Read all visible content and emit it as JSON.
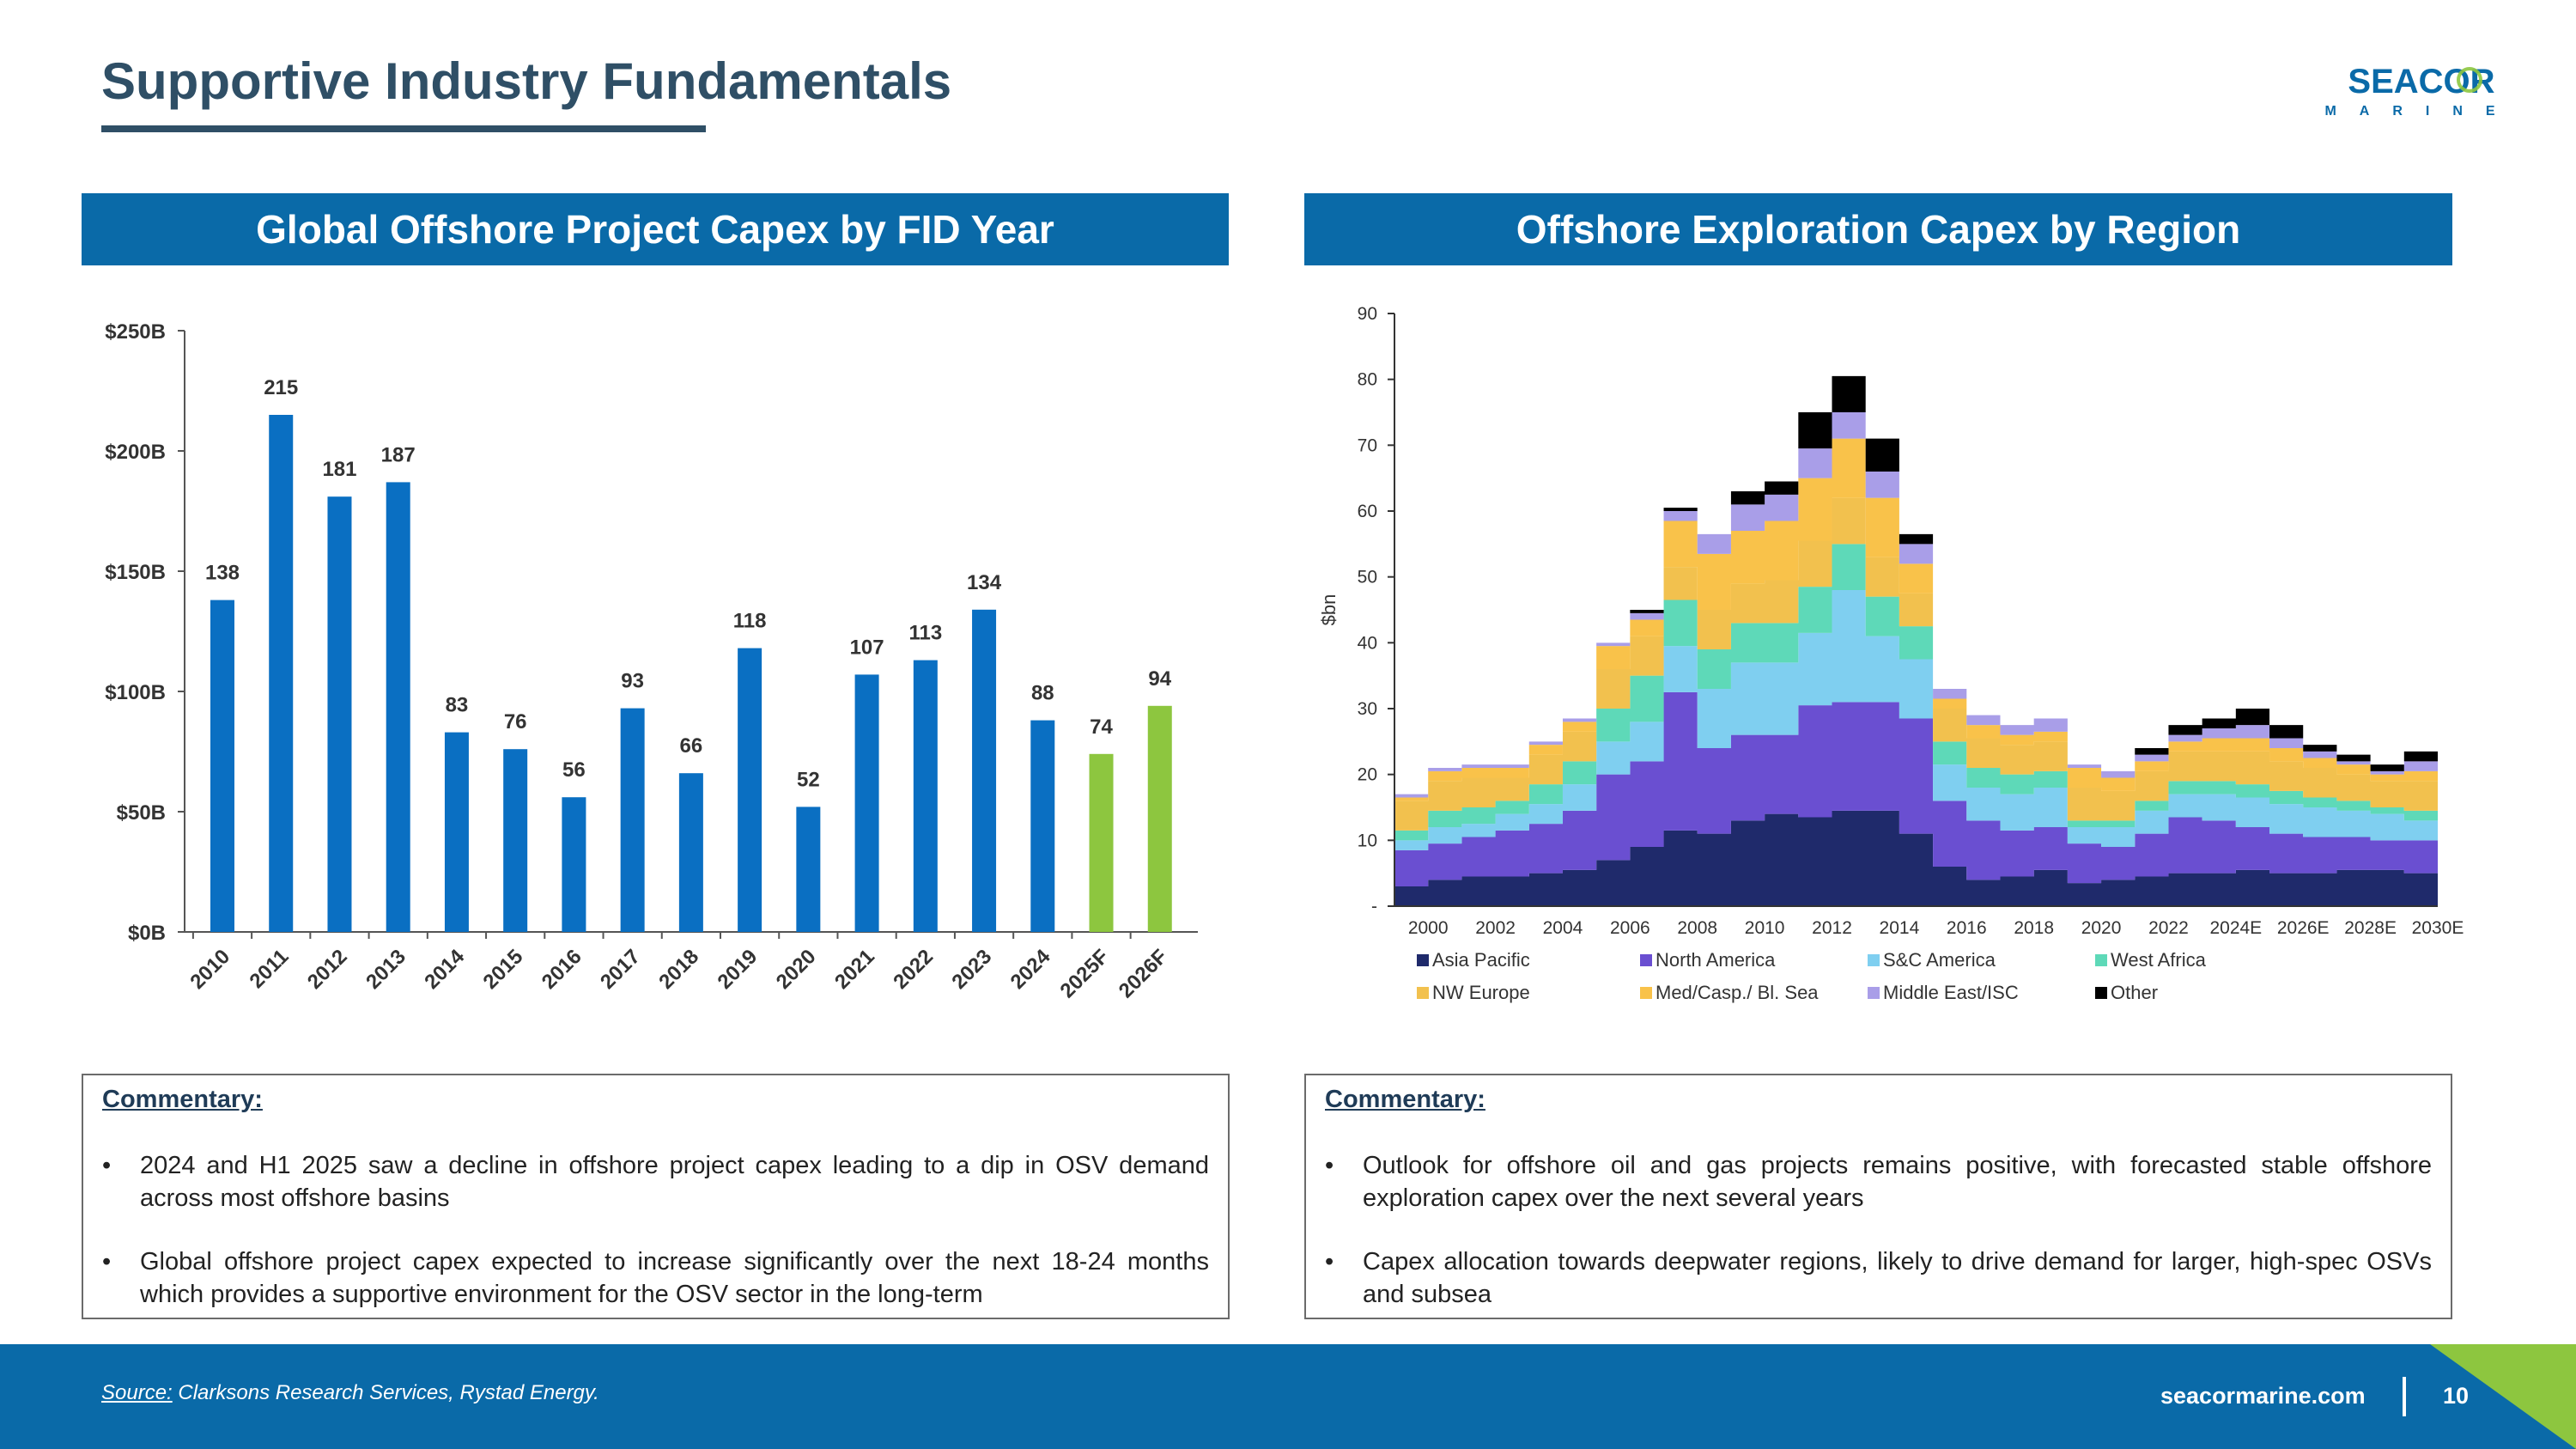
{
  "page": {
    "title": "Supportive Industry Fundamentals",
    "logo": {
      "line1": "SEACOR",
      "line2": "MARINE"
    },
    "footer": {
      "source_label": "Source:",
      "source_text": " Clarksons Research Services, Rystad Energy.",
      "website": "seacormarine.com",
      "page_number": "10"
    },
    "colors": {
      "primary": "#0a6aa8",
      "accent_green": "#8dc63f",
      "title": "#2f4f66"
    }
  },
  "left_panel": {
    "header": "Global Offshore Project Capex by FID Year",
    "commentary": {
      "title": "Commentary:",
      "bullets": [
        "2024 and H1 2025 saw a decline in offshore project capex leading to a dip in OSV demand across most offshore basins",
        "Global offshore project capex expected to increase significantly over the next 18-24 months which provides a supportive environment for the OSV sector in the long-term"
      ]
    }
  },
  "right_panel": {
    "header": "Offshore Exploration Capex by Region",
    "commentary": {
      "title": "Commentary:",
      "bullets": [
        "Outlook for offshore oil and gas projects remains positive, with forecasted stable offshore exploration capex over the next several years",
        "Capex allocation towards deepwater regions, likely to drive demand for larger, high-spec OSVs and subsea"
      ]
    }
  },
  "chart_data": [
    {
      "type": "bar",
      "title": "Global Offshore Project Capex by FID Year",
      "categories": [
        "2010",
        "2011",
        "2012",
        "2013",
        "2014",
        "2015",
        "2016",
        "2017",
        "2018",
        "2019",
        "2020",
        "2021",
        "2022",
        "2023",
        "2024",
        "2025F",
        "2026F"
      ],
      "values": [
        138,
        215,
        181,
        187,
        83,
        76,
        56,
        93,
        66,
        118,
        52,
        107,
        113,
        134,
        88,
        74,
        94
      ],
      "forecast": [
        false,
        false,
        false,
        false,
        false,
        false,
        false,
        false,
        false,
        false,
        false,
        false,
        false,
        false,
        false,
        true,
        true
      ],
      "colors": {
        "actual": "#0a6fc2",
        "forecast": "#8dc63f"
      },
      "ylim": [
        0,
        250
      ],
      "yticks": [
        0,
        50,
        100,
        150,
        200,
        250
      ],
      "ytick_labels": [
        "$0B",
        "$50B",
        "$100B",
        "$150B",
        "$200B",
        "$250B"
      ],
      "xlabel": "",
      "ylabel": ""
    },
    {
      "type": "area",
      "stacked": true,
      "title": "Offshore Exploration Capex by Region",
      "ylabel": "$bn",
      "ylim": [
        0,
        90
      ],
      "yticks": [
        0,
        10,
        20,
        30,
        40,
        50,
        60,
        70,
        80,
        90
      ],
      "ytick_labels": [
        "-",
        "10",
        "20",
        "30",
        "40",
        "50",
        "60",
        "70",
        "80",
        "90"
      ],
      "x": [
        "2000",
        "2001",
        "2002",
        "2003",
        "2004",
        "2005",
        "2006",
        "2007",
        "2008",
        "2009",
        "2010",
        "2011",
        "2012",
        "2013",
        "2014",
        "2015",
        "2016",
        "2017",
        "2018",
        "2019",
        "2020",
        "2021",
        "2022",
        "2023",
        "2024E",
        "2025E",
        "2026E",
        "2027E",
        "2028E",
        "2029E",
        "2030E"
      ],
      "xtick_labels": [
        "2000",
        "2002",
        "2004",
        "2006",
        "2008",
        "2010",
        "2012",
        "2014",
        "2016",
        "2018",
        "2020",
        "2022",
        "2024E",
        "2026E",
        "2028E",
        "2030E"
      ],
      "legend_position": "bottom",
      "series": [
        {
          "name": "Asia Pacific",
          "color": "#1f2a6b",
          "values": [
            3,
            4,
            4.5,
            4.5,
            5,
            5.5,
            7,
            9,
            11.5,
            11,
            13,
            14,
            13.5,
            14.5,
            14.5,
            11,
            6,
            4,
            4.5,
            5.5,
            3.5,
            4,
            4.5,
            5,
            5,
            5.5,
            5,
            5,
            5.5,
            5.5,
            5
          ]
        },
        {
          "name": "North America",
          "color": "#6a4fd1",
          "values": [
            5.5,
            5.5,
            6,
            7,
            7.5,
            9,
            13,
            13,
            21,
            13,
            13,
            12,
            17,
            16.5,
            16.5,
            17.5,
            10,
            9,
            7,
            6.5,
            6,
            5,
            6.5,
            8.5,
            8,
            6.5,
            6,
            5.5,
            5,
            4.5,
            5
          ]
        },
        {
          "name": "S&C America",
          "color": "#7fcff0",
          "values": [
            1.5,
            2.5,
            2,
            2.5,
            3,
            4,
            5,
            6,
            7,
            9,
            11,
            11,
            11,
            17,
            10,
            9,
            5.5,
            5,
            5.5,
            6,
            2.5,
            3,
            3.5,
            3.5,
            4,
            4.5,
            4.5,
            4.5,
            4,
            4,
            3
          ]
        },
        {
          "name": "West Africa",
          "color": "#5ed9b8",
          "values": [
            1.5,
            2.5,
            2.5,
            2,
            3,
            3.5,
            5,
            7,
            7,
            6,
            6,
            6,
            7,
            7,
            6,
            5,
            3.5,
            3,
            3,
            2.5,
            1,
            1,
            1.5,
            2,
            2,
            2,
            2,
            1.5,
            1.5,
            1,
            1.5
          ]
        },
        {
          "name": "NW Europe",
          "color": "#f2c14e",
          "values": [
            4.5,
            4.5,
            4.5,
            3.5,
            4.5,
            4.5,
            6,
            6,
            5,
            6,
            6,
            6.5,
            7,
            7,
            6,
            5,
            5,
            4.5,
            4.5,
            4.5,
            5,
            4.5,
            4.5,
            4.5,
            4.5,
            5,
            4.5,
            4.5,
            4,
            4,
            4.5
          ]
        },
        {
          "name": "Med/Casp./ Bl. Sea",
          "color": "#f9c24a",
          "values": [
            0.5,
            1.5,
            1.5,
            1.5,
            1.5,
            1.5,
            3.5,
            2.5,
            7,
            8.5,
            8,
            9,
            9.5,
            9,
            9,
            4.5,
            1.5,
            2,
            1.5,
            1.5,
            3,
            2,
            1.5,
            1.5,
            2,
            2,
            2,
            1.5,
            1.5,
            1,
            1.5
          ]
        },
        {
          "name": "Middle East/ISC",
          "color": "#a99ee8",
          "values": [
            0.5,
            0.5,
            0.5,
            0.5,
            0.5,
            0.5,
            0.5,
            1,
            1.5,
            3,
            4,
            4,
            4.5,
            4,
            4,
            3,
            1.5,
            1.5,
            1.5,
            2,
            0.5,
            1,
            1,
            1,
            1.5,
            2,
            1.5,
            1,
            0.5,
            0.5,
            1.5
          ]
        },
        {
          "name": "Other",
          "color": "#000000",
          "values": [
            0,
            0,
            0,
            0,
            0,
            0,
            0,
            0.5,
            0.5,
            0,
            2,
            2,
            5.5,
            5.5,
            5,
            1.5,
            0,
            0,
            0,
            0,
            0,
            0,
            1,
            1.5,
            1.5,
            2.5,
            2,
            1,
            1,
            1,
            1.5
          ]
        }
      ]
    }
  ]
}
